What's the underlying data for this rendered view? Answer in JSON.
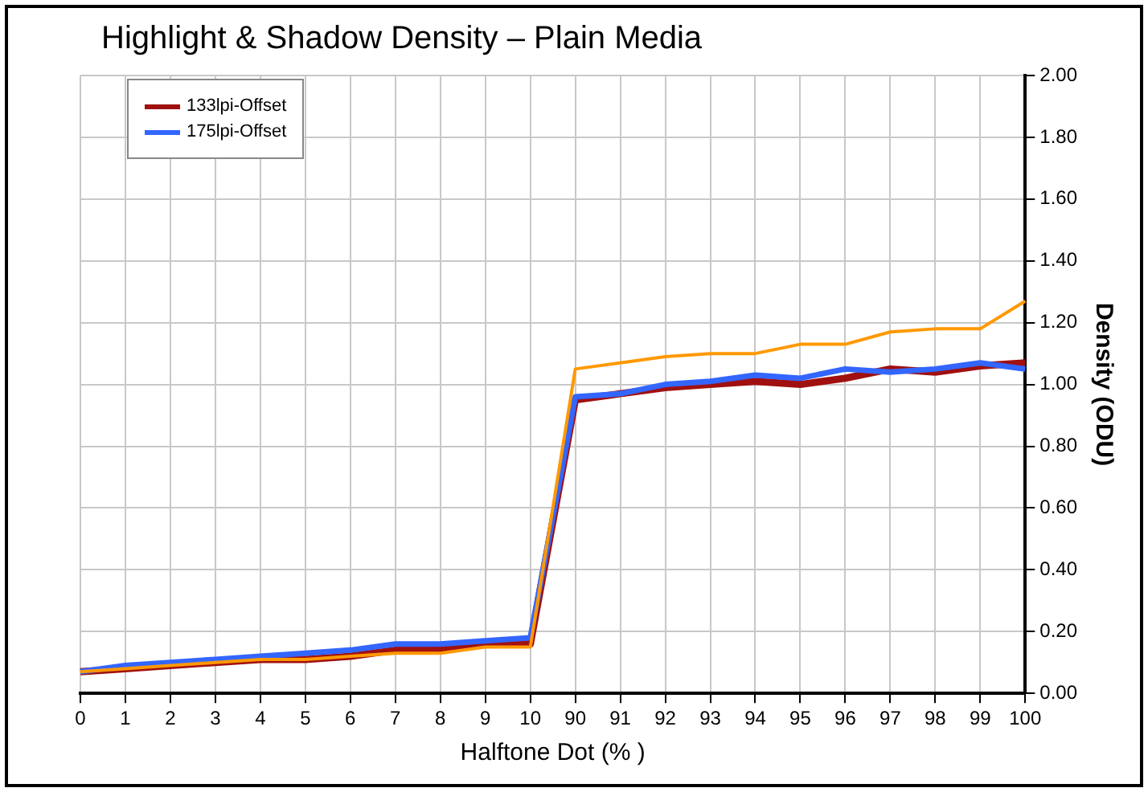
{
  "chart_data": {
    "type": "line",
    "title": "Highlight & Shadow Density – Plain Media",
    "xlabel": "Halftone Dot (% )",
    "ylabel": "Density (ODU)",
    "categories": [
      "0",
      "1",
      "2",
      "3",
      "4",
      "5",
      "6",
      "7",
      "8",
      "9",
      "10",
      "90",
      "91",
      "92",
      "93",
      "94",
      "95",
      "96",
      "97",
      "98",
      "99",
      "100"
    ],
    "series": [
      {
        "name": "133lpi-Offset",
        "color": "#a01010",
        "values": [
          0.07,
          0.08,
          0.09,
          0.1,
          0.11,
          0.11,
          0.12,
          0.14,
          0.14,
          0.16,
          0.16,
          0.95,
          0.97,
          0.99,
          1.0,
          1.01,
          1.0,
          1.02,
          1.05,
          1.04,
          1.06,
          1.07
        ]
      },
      {
        "name": "175lpi-Offset",
        "color": "#3366ff",
        "values": [
          0.07,
          0.09,
          0.1,
          0.11,
          0.12,
          0.13,
          0.14,
          0.16,
          0.16,
          0.17,
          0.18,
          0.96,
          0.97,
          1.0,
          1.01,
          1.03,
          1.02,
          1.05,
          1.04,
          1.05,
          1.07,
          1.05
        ]
      },
      {
        "color": "#ff9900",
        "values": [
          0.07,
          0.08,
          0.09,
          0.1,
          0.11,
          0.11,
          0.12,
          0.13,
          0.13,
          0.15,
          0.15,
          1.05,
          1.07,
          1.09,
          1.1,
          1.1,
          1.13,
          1.13,
          1.17,
          1.18,
          1.18,
          1.27
        ]
      }
    ],
    "ylim": [
      0,
      2
    ],
    "yticks": [
      {
        "value": 0,
        "label": "0.00"
      },
      {
        "value": 0.2,
        "label": "0.20"
      },
      {
        "value": 0.4,
        "label": "0.40"
      },
      {
        "value": 0.6,
        "label": "0.60"
      },
      {
        "value": 0.8,
        "label": "0.80"
      },
      {
        "value": 1,
        "label": "1.00"
      },
      {
        "value": 1.2,
        "label": "1.20"
      },
      {
        "value": 1.4,
        "label": "1.40"
      },
      {
        "value": 1.6,
        "label": "1.60"
      },
      {
        "value": 1.8,
        "label": "1.80"
      },
      {
        "value": 2,
        "label": "2.00"
      }
    ],
    "grid": true,
    "legend": "top left",
    "marker": "none",
    "line_style": "solid"
  }
}
